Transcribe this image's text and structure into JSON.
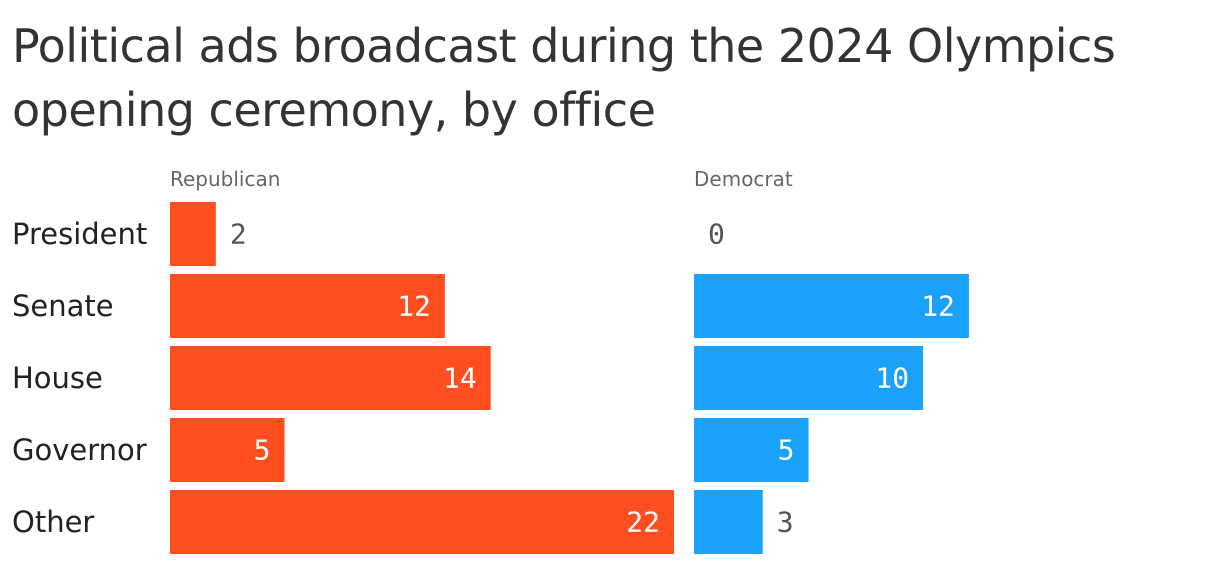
{
  "chart_data": {
    "type": "bar",
    "title": "Political ads broadcast during the 2024 Olympics opening ceremony, by office",
    "categories": [
      "President",
      "Senate",
      "House",
      "Governor",
      "Other"
    ],
    "series": [
      {
        "name": "Republican",
        "values": [
          2,
          12,
          14,
          5,
          22
        ],
        "color": "#ff4e1f"
      },
      {
        "name": "Democrat",
        "values": [
          0,
          12,
          10,
          5,
          3
        ],
        "color": "#1aa1fa"
      }
    ],
    "xlim": [
      0,
      22
    ],
    "grid": false,
    "legend": "none",
    "label_color_inside": "#ffffff",
    "label_color_outside": "#555555"
  }
}
